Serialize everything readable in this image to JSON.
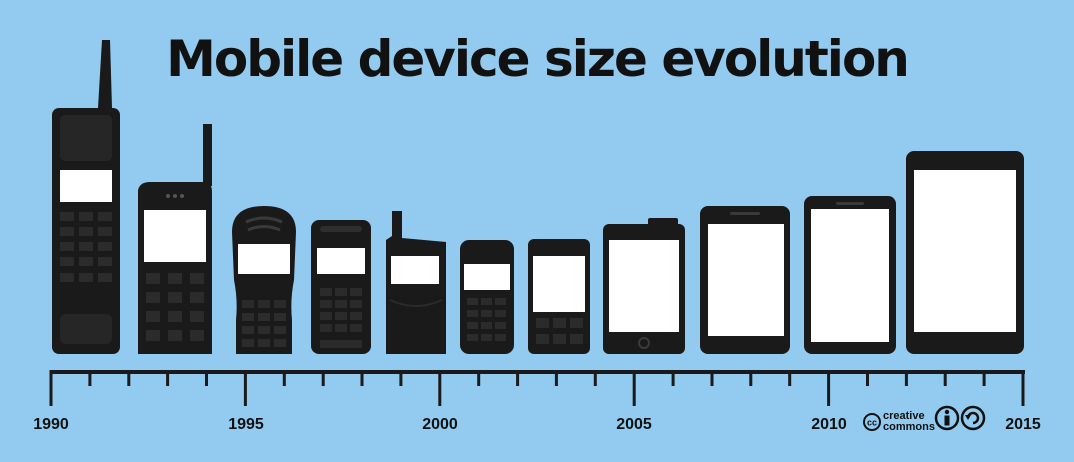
{
  "title": "Mobile device size evolution",
  "timeline": {
    "years": [
      "1990",
      "1995",
      "2000",
      "2005",
      "2010",
      "2015"
    ]
  },
  "license": {
    "line1": "creative",
    "line2": "commons",
    "badge": "cc"
  },
  "colors": {
    "background": "#92cbef",
    "device": "#1a1a1a",
    "screen": "#ffffff"
  }
}
